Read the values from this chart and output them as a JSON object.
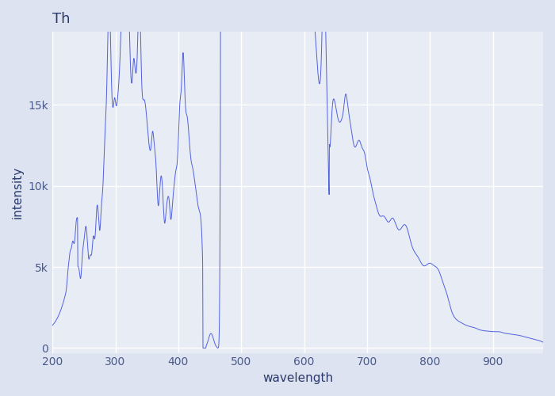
{
  "title": "Th",
  "xlabel": "wavelength",
  "ylabel": "intensity",
  "xlim": [
    200,
    980
  ],
  "ylim": [
    -300,
    19500
  ],
  "line_color": "#4455dd",
  "bg_color": "#e8ecf5",
  "fig_color": "#dde3f0",
  "title_color": "#2a3a6a",
  "label_color": "#2a3a6a",
  "tick_color": "#4a5a8a",
  "grid_color": "#ffffff",
  "title_fontsize": 13,
  "label_fontsize": 11,
  "ytick_labels": [
    "0",
    "5k",
    "10k",
    "15k"
  ],
  "ytick_vals": [
    0,
    5000,
    10000,
    15000
  ]
}
